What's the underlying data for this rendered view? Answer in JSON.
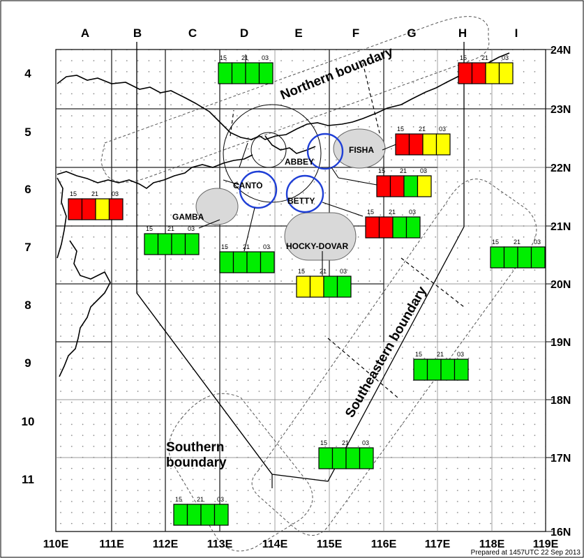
{
  "columns": [
    "A",
    "B",
    "C",
    "D",
    "E",
    "F",
    "G",
    "H",
    "I"
  ],
  "rows": [
    "4",
    "5",
    "6",
    "7",
    "8",
    "9",
    "10",
    "11"
  ],
  "longitudes": [
    "110E",
    "111E",
    "112E",
    "113E",
    "114E",
    "115E",
    "116E",
    "117E",
    "118E",
    "119E"
  ],
  "latitudes": [
    "24N",
    "23N",
    "22N",
    "21N",
    "20N",
    "19N",
    "18N",
    "17N",
    "16N"
  ],
  "boundaries": {
    "northern": "Northern boundary",
    "southeastern": "Southeastern boundary",
    "southern_line1": "Southern",
    "southern_line2": "boundary"
  },
  "areas": [
    {
      "name": "FISHA"
    },
    {
      "name": "ABBEY"
    },
    {
      "name": "CANTO"
    },
    {
      "name": "BETTY"
    },
    {
      "name": "GAMBA"
    },
    {
      "name": "HOCKY-DOVAR"
    }
  ],
  "time_labels": [
    "15",
    "21",
    "03"
  ],
  "colors": {
    "red": "#ff0000",
    "green": "#00ee00",
    "yellow": "#ffff00",
    "area_fill": "#d9d9d9",
    "circle": "#1f3fd6"
  },
  "forecast_boxes": [
    {
      "id": "D4",
      "cells": [
        "green",
        "green",
        "green",
        "green"
      ]
    },
    {
      "id": "H4",
      "cells": [
        "red",
        "red",
        "yellow",
        "yellow"
      ]
    },
    {
      "id": "G5",
      "cells": [
        "red",
        "red",
        "yellow",
        "yellow"
      ]
    },
    {
      "id": "A6",
      "cells": [
        "red",
        "red",
        "yellow",
        "red"
      ]
    },
    {
      "id": "G6",
      "cells": [
        "red",
        "red",
        "green",
        "yellow"
      ]
    },
    {
      "id": "F6",
      "cells": [
        "red",
        "red",
        "green",
        "green"
      ]
    },
    {
      "id": "C7",
      "cells": [
        "green",
        "green",
        "green",
        "green"
      ]
    },
    {
      "id": "D7",
      "cells": [
        "green",
        "green",
        "green",
        "green"
      ]
    },
    {
      "id": "I7",
      "cells": [
        "green",
        "green",
        "green",
        "green"
      ]
    },
    {
      "id": "E8",
      "cells": [
        "yellow",
        "yellow",
        "green",
        "green"
      ]
    },
    {
      "id": "G9",
      "cells": [
        "green",
        "green",
        "green",
        "green"
      ]
    },
    {
      "id": "E10",
      "cells": [
        "green",
        "green",
        "green",
        "green"
      ]
    },
    {
      "id": "C11",
      "cells": [
        "green",
        "green",
        "green",
        "green"
      ]
    }
  ],
  "footer": "Prepared at 1457UTC 22 Sep 2013"
}
